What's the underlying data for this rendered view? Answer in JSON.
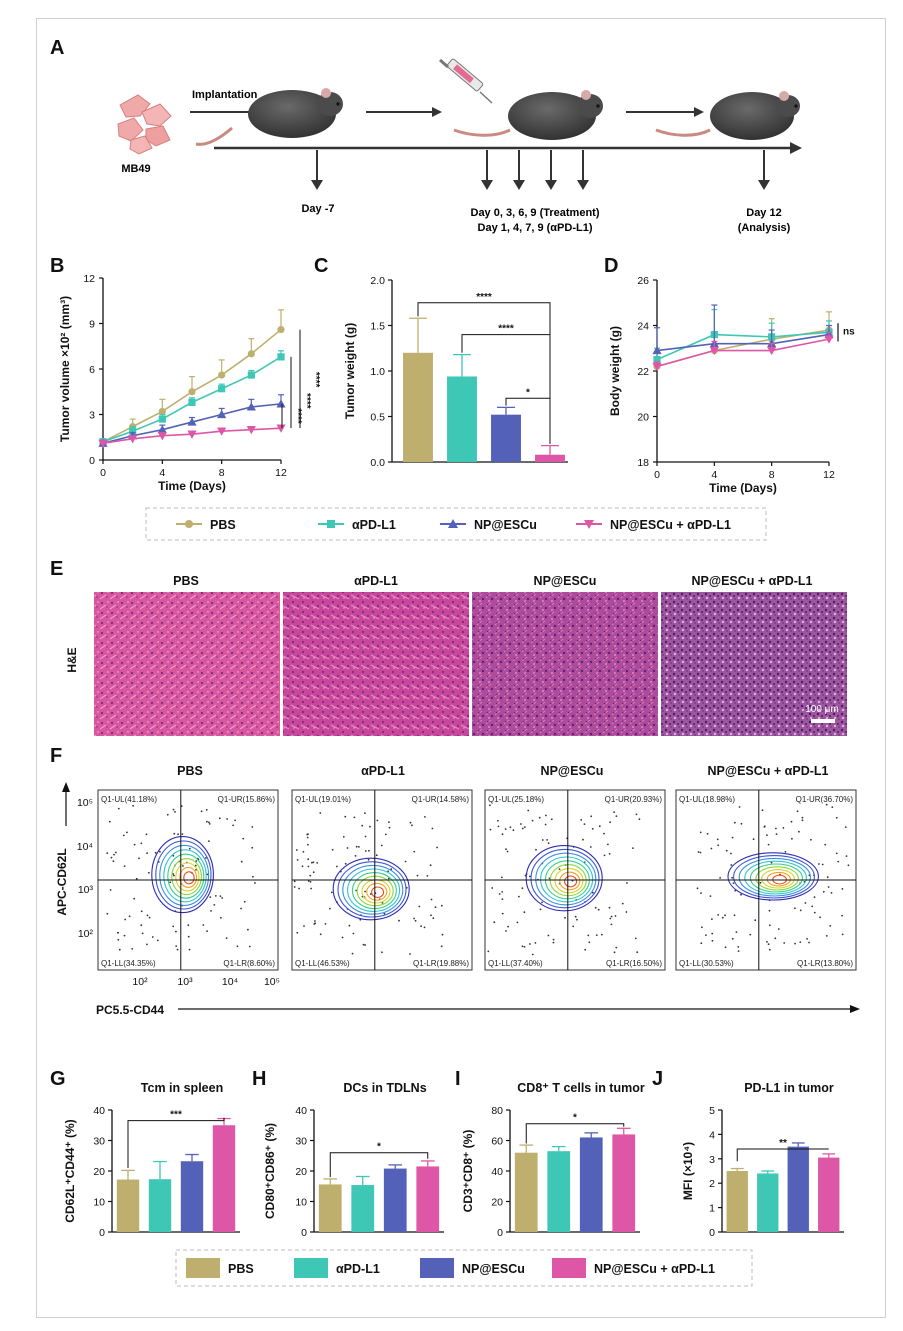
{
  "panels": {
    "A": "A",
    "B": "B",
    "C": "C",
    "D": "D",
    "E": "E",
    "F": "F",
    "G": "G",
    "H": "H",
    "I": "I",
    "J": "J"
  },
  "colors": {
    "PBS": "#bfaf6e",
    "aPDL1": "#3fc7b5",
    "NPESCu": "#5461b8",
    "combo": "#de57a6"
  },
  "timeline": {
    "cells_label": "MB49",
    "implant_label": "Implantation",
    "day_neg7": "Day -7",
    "treat_line1": "Day 0, 3, 6, 9 (Treatment)",
    "treat_line2": "Day 1, 4, 7, 9 (αPD-L1)",
    "analysis_line1": "Day 12",
    "analysis_line2": "(Analysis)"
  },
  "legend_top": [
    "PBS",
    "αPD-L1",
    "NP@ESCu",
    "NP@ESCu + αPD-L1"
  ],
  "legend_bottom": [
    "PBS",
    "αPD-L1",
    "NP@ESCu",
    "NP@ESCu + αPD-L1"
  ],
  "histology": {
    "groups": [
      "PBS",
      "αPD-L1",
      "NP@ESCu",
      "NP@ESCu + αPD-L1"
    ],
    "stain_label": "H&E",
    "scale_label": "100 μm"
  },
  "flow": {
    "groups": [
      "PBS",
      "αPD-L1",
      "NP@ESCu",
      "NP@ESCu + αPD-L1"
    ],
    "ylabel": "APC-CD62L",
    "xlabel": "PC5.5-CD44",
    "quadrants": [
      {
        "UL": "Q1-UL(41.18%)",
        "UR": "Q1-UR(15.86%)",
        "LL": "Q1-LL(34.35%)",
        "LR": "Q1-LR(8.60%)"
      },
      {
        "UL": "Q1-UL(19.01%)",
        "UR": "Q1-UR(14.58%)",
        "LL": "Q1-LL(46.53%)",
        "LR": "Q1-LR(19.88%)"
      },
      {
        "UL": "Q1-UL(25.18%)",
        "UR": "Q1-UR(20.93%)",
        "LL": "Q1-LL(37.40%)",
        "LR": "Q1-LR(16.50%)"
      },
      {
        "UL": "Q1-UL(18.98%)",
        "UR": "Q1-UR(36.70%)",
        "LL": "Q1-LL(30.53%)",
        "LR": "Q1-LR(13.80%)"
      }
    ],
    "yticks": [
      "10⁵",
      "10⁴",
      "10³",
      "10²"
    ],
    "xticks": [
      "10²",
      "10³",
      "10⁴",
      "10⁵"
    ]
  },
  "chart_data": [
    {
      "panel": "B",
      "type": "line",
      "xlabel": "Time (Days)",
      "ylabel": "Tumor volume ×10² (mm³)",
      "x": [
        0,
        2,
        4,
        6,
        8,
        10,
        12
      ],
      "xlim": [
        0,
        12
      ],
      "ylim": [
        0,
        12
      ],
      "xticks": [
        0,
        4,
        8,
        12
      ],
      "yticks": [
        0,
        3,
        6,
        9,
        12
      ],
      "series": [
        {
          "name": "PBS",
          "values": [
            1.2,
            2.2,
            3.2,
            4.5,
            5.6,
            7.0,
            8.6
          ],
          "errors": [
            0.2,
            0.5,
            0.8,
            1.0,
            1.0,
            1.0,
            1.3
          ]
        },
        {
          "name": "αPD-L1",
          "values": [
            1.2,
            1.9,
            2.7,
            3.8,
            4.7,
            5.6,
            6.8
          ],
          "errors": [
            0.2,
            0.3,
            0.3,
            0.3,
            0.3,
            0.3,
            0.4
          ]
        },
        {
          "name": "NP@ESCu",
          "values": [
            1.1,
            1.6,
            2.0,
            2.5,
            3.0,
            3.5,
            3.7
          ],
          "errors": [
            0.2,
            0.2,
            0.3,
            0.3,
            0.4,
            0.5,
            0.6
          ]
        },
        {
          "name": "NP@ESCu + αPD-L1",
          "values": [
            1.1,
            1.4,
            1.6,
            1.7,
            1.9,
            2.0,
            2.1
          ],
          "errors": [
            0.1,
            0.1,
            0.1,
            0.2,
            0.2,
            0.2,
            0.2
          ]
        }
      ],
      "annotations": [
        "****",
        "****",
        "****"
      ]
    },
    {
      "panel": "C",
      "type": "bar",
      "ylabel": "Tumor weight (g)",
      "categories": [
        "PBS",
        "αPD-L1",
        "NP@ESCu",
        "NP@ESCu + αPD-L1"
      ],
      "values": [
        1.2,
        0.94,
        0.52,
        0.08
      ],
      "errors": [
        0.38,
        0.24,
        0.08,
        0.1
      ],
      "ylim": [
        0,
        2.0
      ],
      "yticks": [
        "0.0",
        "0.5",
        "1.0",
        "1.5",
        "2.0"
      ],
      "annotations": [
        "****",
        "****",
        "*"
      ]
    },
    {
      "panel": "D",
      "type": "line",
      "xlabel": "Time (Days)",
      "ylabel": "Body weight (g)",
      "x": [
        0,
        4,
        8,
        12
      ],
      "xlim": [
        0,
        12
      ],
      "ylim": [
        18,
        26
      ],
      "xticks": [
        0,
        4,
        8,
        12
      ],
      "yticks": [
        18,
        20,
        22,
        24,
        26
      ],
      "series": [
        {
          "name": "PBS",
          "values": [
            22.2,
            22.9,
            23.4,
            23.8
          ],
          "errors": [
            0.4,
            0.8,
            0.9,
            0.8
          ]
        },
        {
          "name": "αPD-L1",
          "values": [
            22.5,
            23.6,
            23.5,
            23.7
          ],
          "errors": [
            0.5,
            1.1,
            0.6,
            0.5
          ]
        },
        {
          "name": "NP@ESCu",
          "values": [
            22.9,
            23.2,
            23.2,
            23.6
          ],
          "errors": [
            1.0,
            1.7,
            0.6,
            0.4
          ]
        },
        {
          "name": "NP@ESCu + αPD-L1",
          "values": [
            22.2,
            22.9,
            22.9,
            23.4
          ],
          "errors": [
            0.2,
            0.4,
            0.3,
            0.3
          ]
        }
      ],
      "annotations": [
        "ns"
      ]
    },
    {
      "panel": "G",
      "type": "bar",
      "title": "Tcm in spleen",
      "ylabel": "CD62L⁺CD44⁺ (%)",
      "categories": [
        "PBS",
        "αPD-L1",
        "NP@ESCu",
        "NP@ESCu + αPD-L1"
      ],
      "values": [
        17.2,
        17.3,
        23.2,
        35.0
      ],
      "errors": [
        3.0,
        5.8,
        2.2,
        2.2
      ],
      "ylim": [
        0,
        40
      ],
      "yticks": [
        "0",
        "10",
        "20",
        "30",
        "40"
      ],
      "annotations": [
        "***"
      ]
    },
    {
      "panel": "H",
      "type": "bar",
      "title": "DCs in TDLNs",
      "ylabel": "CD80⁺CD86⁺ (%)",
      "categories": [
        "PBS",
        "αPD-L1",
        "NP@ESCu",
        "NP@ESCu + αPD-L1"
      ],
      "values": [
        15.6,
        15.4,
        20.8,
        21.5
      ],
      "errors": [
        1.8,
        2.8,
        1.2,
        1.8
      ],
      "ylim": [
        0,
        40
      ],
      "yticks": [
        "0",
        "10",
        "20",
        "30",
        "40"
      ],
      "annotations": [
        "*"
      ]
    },
    {
      "panel": "I",
      "type": "bar",
      "title": "CD8⁺ T cells in tumor",
      "ylabel": "CD3⁺CD8⁺ (%)",
      "categories": [
        "PBS",
        "αPD-L1",
        "NP@ESCu",
        "NP@ESCu + αPD-L1"
      ],
      "values": [
        52,
        53,
        62,
        64
      ],
      "errors": [
        5,
        3,
        3,
        4
      ],
      "ylim": [
        0,
        80
      ],
      "yticks": [
        "0",
        "20",
        "40",
        "60",
        "80"
      ],
      "annotations": [
        "*"
      ]
    },
    {
      "panel": "J",
      "type": "bar",
      "title": "PD-L1 in tumor",
      "ylabel": "MFI (×10⁴)",
      "categories": [
        "PBS",
        "αPD-L1",
        "NP@ESCu",
        "NP@ESCu + αPD-L1"
      ],
      "values": [
        2.5,
        2.4,
        3.5,
        3.05
      ],
      "errors": [
        0.1,
        0.1,
        0.15,
        0.15
      ],
      "ylim": [
        0,
        5
      ],
      "yticks": [
        "0",
        "1",
        "2",
        "3",
        "4",
        "5"
      ],
      "annotations": [
        "**"
      ]
    }
  ]
}
